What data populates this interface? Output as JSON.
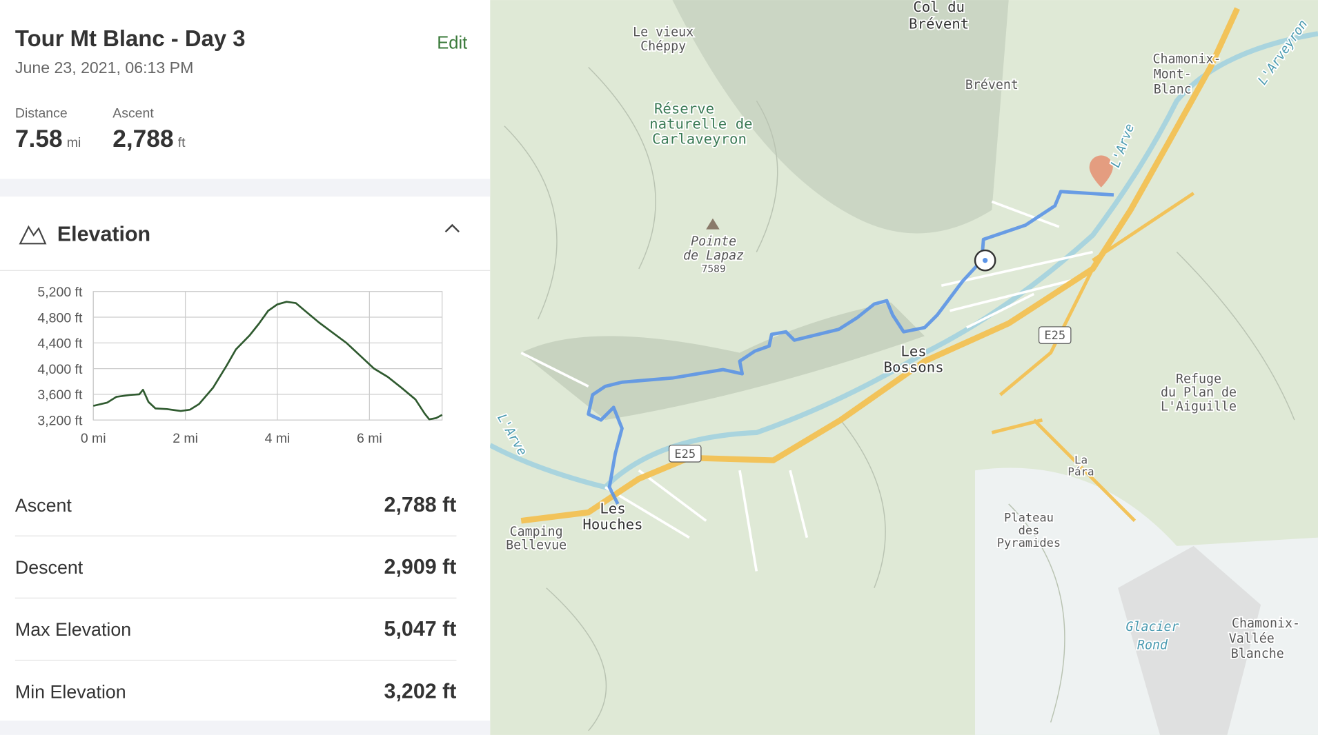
{
  "header": {
    "title": "Tour Mt Blanc - Day 3",
    "date": "June 23, 2021, 06:13 PM",
    "edit": "Edit"
  },
  "summary": [
    {
      "label": "Distance",
      "value": "7.58",
      "unit": "mi"
    },
    {
      "label": "Ascent",
      "value": "2,788",
      "unit": "ft"
    }
  ],
  "elevation": {
    "heading": "Elevation",
    "chart_data": {
      "type": "line",
      "color": "#2f5a2f",
      "grid": true,
      "x": [
        0,
        0.3,
        0.5,
        0.8,
        1.0,
        1.08,
        1.2,
        1.35,
        1.6,
        1.9,
        2.1,
        2.3,
        2.6,
        2.9,
        3.1,
        3.4,
        3.6,
        3.8,
        4.0,
        4.2,
        4.4,
        4.6,
        4.9,
        5.2,
        5.5,
        5.8,
        6.1,
        6.4,
        6.7,
        7.0,
        7.2,
        7.3,
        7.45,
        7.58
      ],
      "values": [
        3420,
        3470,
        3560,
        3590,
        3600,
        3670,
        3480,
        3380,
        3370,
        3340,
        3360,
        3450,
        3700,
        4050,
        4300,
        4520,
        4700,
        4900,
        5000,
        5040,
        5020,
        4900,
        4720,
        4560,
        4400,
        4200,
        4000,
        3870,
        3700,
        3520,
        3300,
        3210,
        3230,
        3280
      ],
      "xlim": [
        0,
        7.58
      ],
      "ylim": [
        3200,
        5200
      ],
      "xticks": [
        {
          "value": 0,
          "label": "0 mi"
        },
        {
          "value": 2,
          "label": "2 mi"
        },
        {
          "value": 4,
          "label": "4 mi"
        },
        {
          "value": 6,
          "label": "6 mi"
        }
      ],
      "yticks": [
        {
          "value": 3200,
          "label": "3,200 ft"
        },
        {
          "value": 3600,
          "label": "3,600 ft"
        },
        {
          "value": 4000,
          "label": "4,000 ft"
        },
        {
          "value": 4400,
          "label": "4,400 ft"
        },
        {
          "value": 4800,
          "label": "4,800 ft"
        },
        {
          "value": 5200,
          "label": "5,200 ft"
        }
      ]
    }
  },
  "stats": [
    [
      "Ascent",
      "2,788 ft"
    ],
    [
      "Descent",
      "2,909 ft"
    ],
    [
      "Max Elevation",
      "5,047 ft"
    ],
    [
      "Min Elevation",
      "3,202 ft"
    ]
  ],
  "map": {
    "labels": [
      "Col du",
      "Brévent",
      "Le vieux",
      "Chéppy",
      "Brévent",
      "Réserve",
      "naturelle de",
      "Carlaveyron",
      "Pointe",
      "de Lapaz",
      "7589",
      "Chamonix-",
      "Mont-",
      "Blanc",
      "L'Arveyron",
      "L'Arve",
      "E25",
      "Les",
      "Bossons",
      "E25",
      "Les",
      "Houches",
      "Camping",
      "Bellevue",
      "L'Arve",
      "La",
      "Pára",
      "Plateau",
      "des",
      "Pyramides",
      "Refuge",
      "du Plan de",
      "L'Aiguille",
      "Glacier",
      "Rond",
      "Chamonix-",
      "Vallée",
      "Blanche"
    ]
  }
}
